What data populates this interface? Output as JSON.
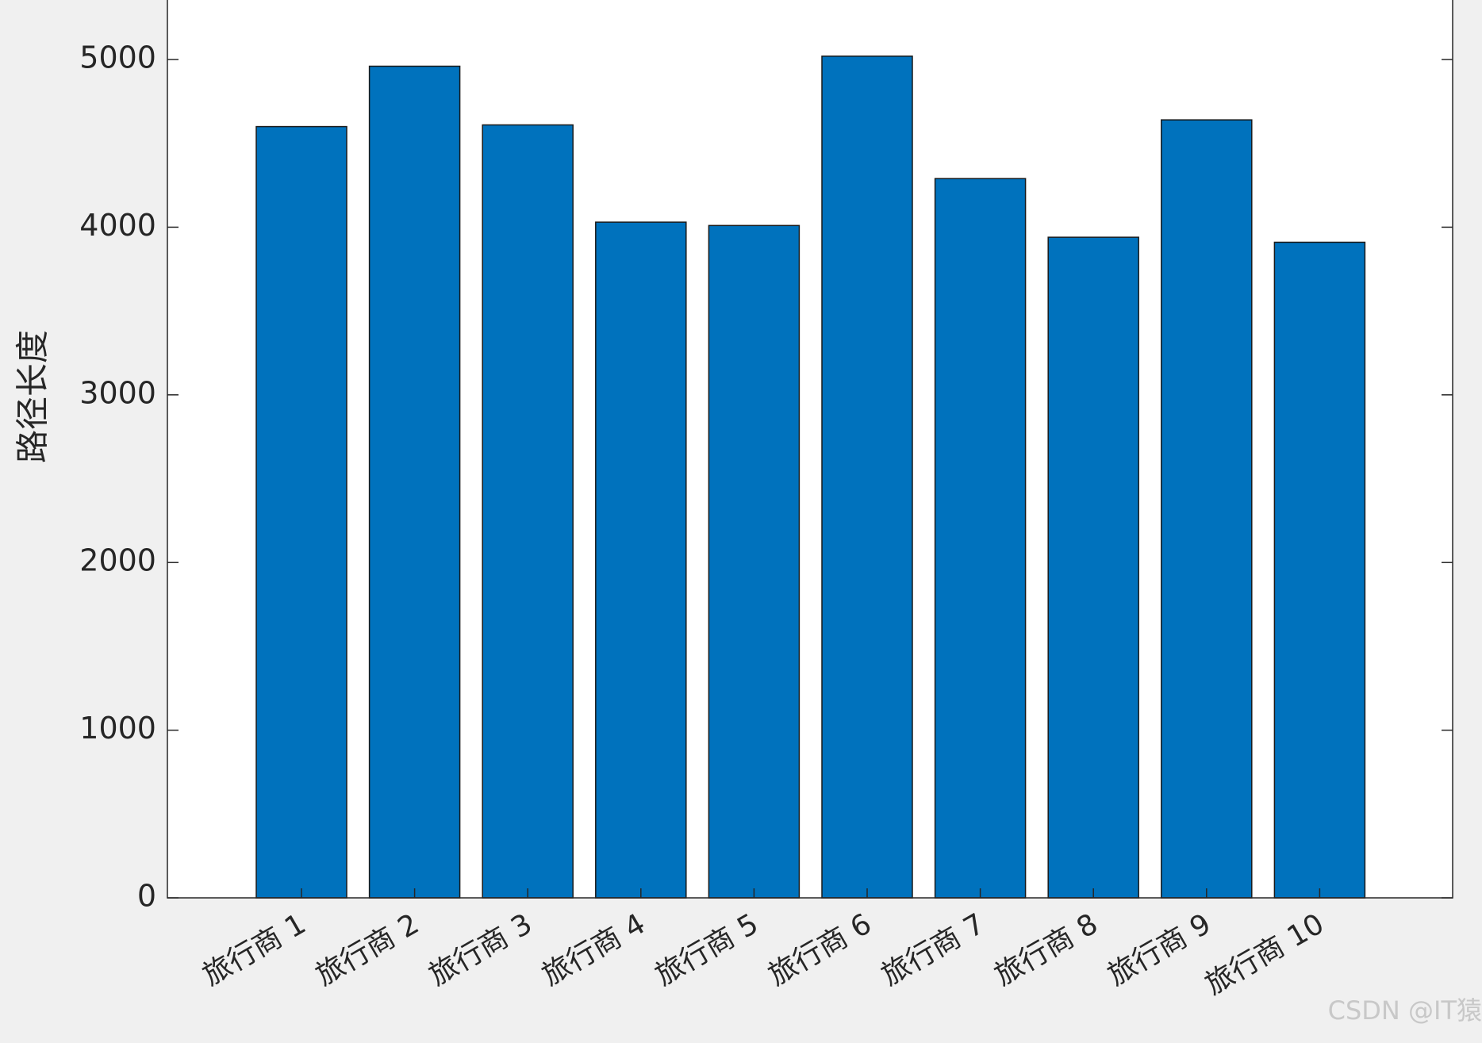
{
  "chart_data": {
    "type": "bar",
    "ylabel": "路径长度",
    "categories": [
      "旅行商 1",
      "旅行商 2",
      "旅行商 3",
      "旅行商 4",
      "旅行商 5",
      "旅行商 6",
      "旅行商 7",
      "旅行商 8",
      "旅行商 9",
      "旅行商 10"
    ],
    "values": [
      4600,
      4960,
      4610,
      4030,
      4010,
      5020,
      4290,
      3940,
      4640,
      3910
    ],
    "color": "#0072bd",
    "ylim": [
      0,
      5355
    ],
    "yticks": [
      0,
      1000,
      2000,
      3000,
      4000,
      5000
    ],
    "grid": false,
    "watermark": "CSDN @IT猿"
  }
}
